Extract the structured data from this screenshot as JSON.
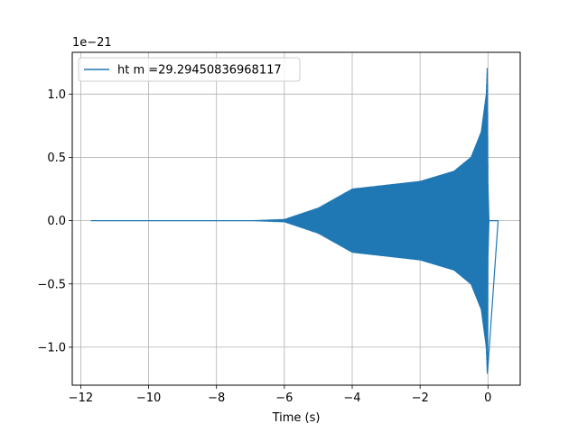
{
  "chart_data": {
    "type": "line",
    "title": "",
    "xlabel": "Time (s)",
    "ylabel": "",
    "y_scale_label": "1e−21",
    "xlim": [
      -12.25,
      0.95
    ],
    "ylim": [
      -1.3,
      1.33
    ],
    "x_ticks": [
      -12,
      -10,
      -8,
      -6,
      -4,
      -2,
      0
    ],
    "x_tick_labels": [
      "−12",
      "−10",
      "−8",
      "−6",
      "−4",
      "−2",
      "0"
    ],
    "y_ticks": [
      -1.0,
      -0.5,
      0.0,
      0.5,
      1.0
    ],
    "y_tick_labels": [
      "−1.0",
      "−0.5",
      "0.0",
      "0.5",
      "1.0"
    ],
    "grid": true,
    "legend_position": "top-left",
    "series": [
      {
        "name": "ht m =29.29450836968117",
        "color": "#1f77b4",
        "signal": "chirp",
        "x_start": -11.7,
        "x_merger": 0.0,
        "x_end": 0.3,
        "envelope": [
          {
            "x": -11.7,
            "y": 0.0
          },
          {
            "x": -7.0,
            "y": 0.0
          },
          {
            "x": -6.0,
            "y": 0.01
          },
          {
            "x": -5.0,
            "y": 0.1
          },
          {
            "x": -4.0,
            "y": 0.25
          },
          {
            "x": -3.0,
            "y": 0.28
          },
          {
            "x": -2.0,
            "y": 0.31
          },
          {
            "x": -1.0,
            "y": 0.39
          },
          {
            "x": -0.5,
            "y": 0.5
          },
          {
            "x": -0.2,
            "y": 0.7
          },
          {
            "x": -0.05,
            "y": 1.0
          },
          {
            "x": -0.02,
            "y": 1.22
          },
          {
            "x": 0.0,
            "y": 0.3
          },
          {
            "x": 0.03,
            "y": 0.0
          },
          {
            "x": 0.3,
            "y": 0.0
          }
        ],
        "lower_extreme": -1.19
      }
    ]
  }
}
